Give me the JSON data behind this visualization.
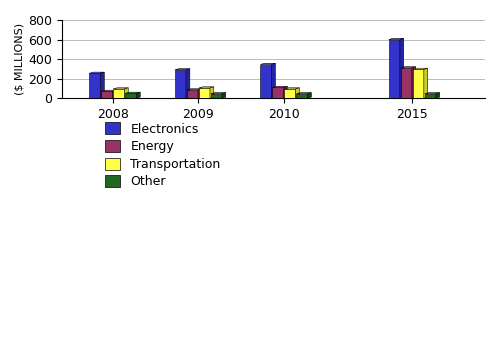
{
  "years": [
    "2008",
    "2009",
    "2010",
    "2015"
  ],
  "categories": [
    "Electronics",
    "Energy",
    "Transportation",
    "Other"
  ],
  "values": {
    "Electronics": [
      255,
      290,
      345,
      600
    ],
    "Energy": [
      70,
      85,
      110,
      310
    ],
    "Transportation": [
      95,
      105,
      95,
      295
    ],
    "Other": [
      50,
      45,
      45,
      45
    ]
  },
  "colors_front": {
    "Electronics": "#3333cc",
    "Energy": "#993366",
    "Transportation": "#ffff44",
    "Other": "#226622"
  },
  "colors_top": {
    "Electronics": "#6666ff",
    "Energy": "#cc6699",
    "Transportation": "#ffff99",
    "Other": "#44aa44"
  },
  "colors_side": {
    "Electronics": "#2222aa",
    "Energy": "#772255",
    "Transportation": "#cccc22",
    "Other": "#114411"
  },
  "ylabel": "($ MILLIONS)",
  "ylim": [
    0,
    800
  ],
  "yticks": [
    0,
    200,
    400,
    600,
    800
  ],
  "background_color": "#ffffff",
  "grid_color": "#bbbbbb",
  "legend_font": 9,
  "axis_font": 8,
  "tick_font": 9
}
